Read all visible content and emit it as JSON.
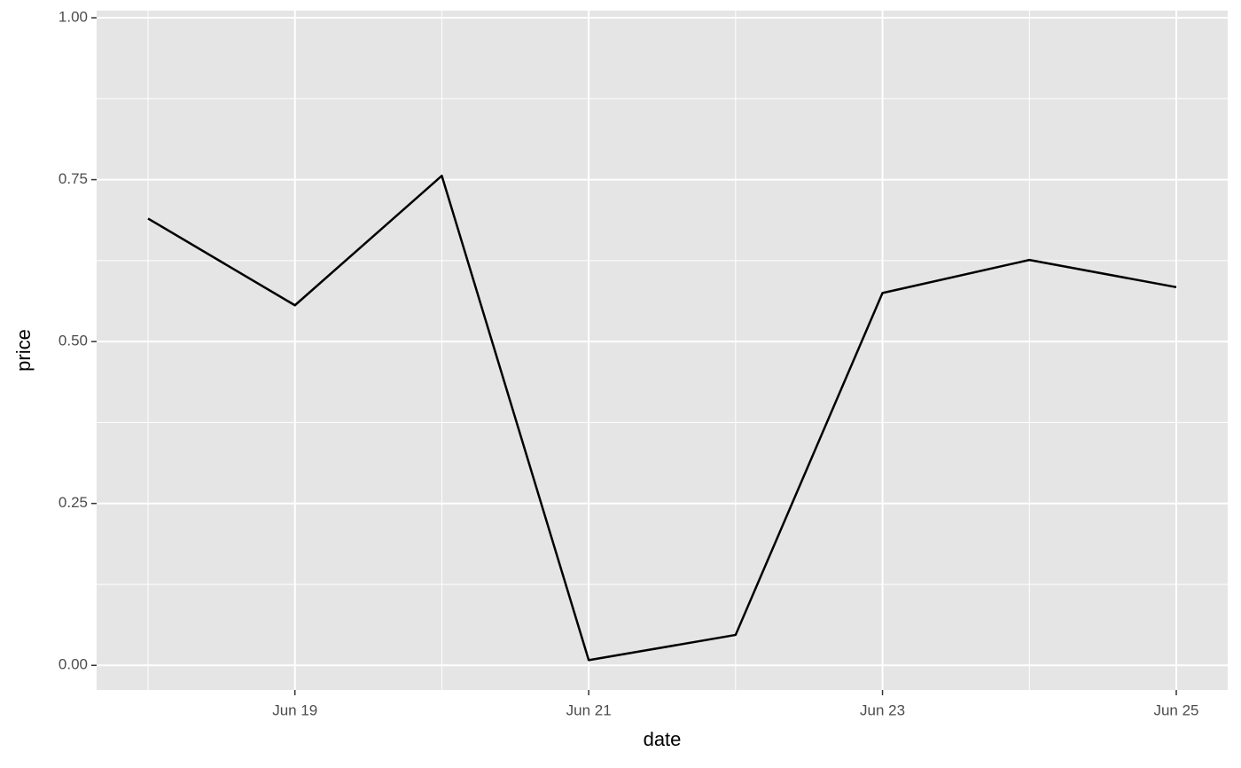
{
  "chart_data": {
    "type": "line",
    "x_label": "date",
    "y_label": "price",
    "categories": [
      null,
      "Jun 19",
      null,
      "Jun 21",
      null,
      "Jun 23",
      null,
      "Jun 25"
    ],
    "series": [
      {
        "name": "price",
        "color": "#000000",
        "values": [
          0.69,
          0.556,
          0.756,
          0.008,
          0.047,
          0.575,
          0.626,
          0.584
        ]
      }
    ],
    "ylim": [
      -0.038,
      1.011
    ],
    "yticks": [
      {
        "value": 0,
        "label": "0.00"
      },
      {
        "value": 0.25,
        "label": "0.25"
      },
      {
        "value": 0.5,
        "label": "0.50"
      },
      {
        "value": 0.75,
        "label": "0.75"
      },
      {
        "value": 1,
        "label": "1.00"
      }
    ],
    "grid": true,
    "panel_color": "#e5e5e5",
    "grid_color": "#ffffff"
  }
}
